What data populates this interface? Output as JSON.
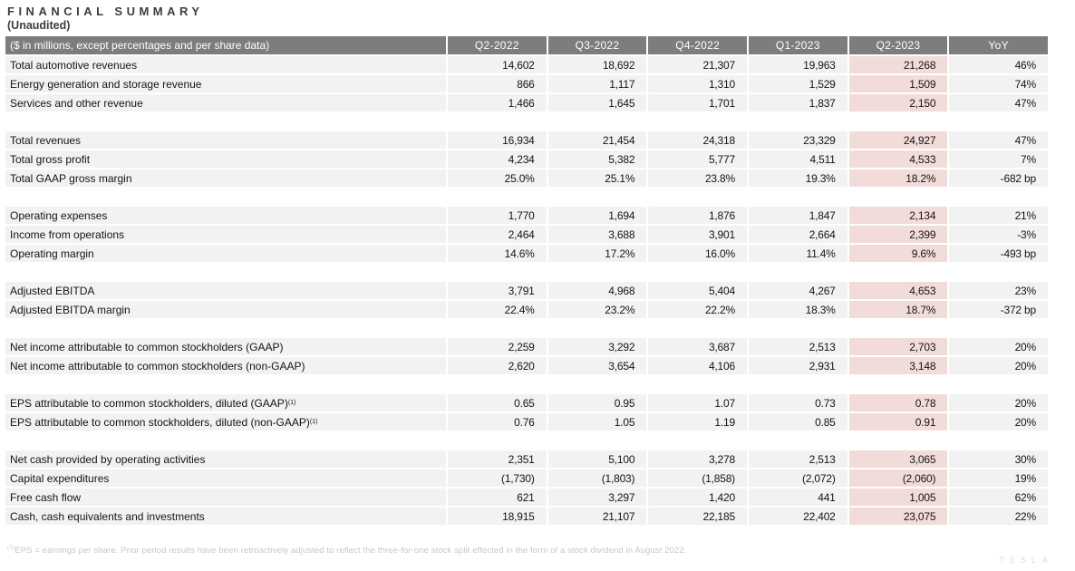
{
  "page": {
    "title": "FINANCIAL SUMMARY",
    "subtitle": "(Unaudited)",
    "footnote_sup": "(1)",
    "footnote": "EPS = earnings per share. Prior period results have been retroactively adjusted to reflect the three-for-one stock split effected in the form of a stock dividend in August 2022.",
    "logo": "TESLA"
  },
  "colors": {
    "header_bg": "#7d7d7d",
    "header_text": "#ffffff",
    "row_bg": "#f2f2f2",
    "highlight_bg": "#f2dcda",
    "title_text": "#3a3d41",
    "footnote_text": "#c7c7c7"
  },
  "chart_data": {
    "type": "table",
    "columns": [
      "($ in millions, except percentages and per share data)",
      "Q2-2022",
      "Q3-2022",
      "Q4-2022",
      "Q1-2023",
      "Q2-2023",
      "YoY"
    ],
    "highlight_column": "Q2-2023",
    "highlight_value_index": 4,
    "groups": [
      {
        "rows": [
          {
            "label": "Total automotive revenues",
            "sup": "",
            "values": [
              "14,602",
              "18,692",
              "21,307",
              "19,963",
              "21,268",
              "46%"
            ]
          },
          {
            "label": "Energy generation and storage revenue",
            "sup": "",
            "values": [
              "866",
              "1,117",
              "1,310",
              "1,529",
              "1,509",
              "74%"
            ]
          },
          {
            "label": "Services and other revenue",
            "sup": "",
            "values": [
              "1,466",
              "1,645",
              "1,701",
              "1,837",
              "2,150",
              "47%"
            ]
          }
        ]
      },
      {
        "rows": [
          {
            "label": "Total revenues",
            "sup": "",
            "values": [
              "16,934",
              "21,454",
              "24,318",
              "23,329",
              "24,927",
              "47%"
            ]
          },
          {
            "label": "Total gross profit",
            "sup": "",
            "values": [
              "4,234",
              "5,382",
              "5,777",
              "4,511",
              "4,533",
              "7%"
            ]
          },
          {
            "label": "Total GAAP gross margin",
            "sup": "",
            "values": [
              "25.0%",
              "25.1%",
              "23.8%",
              "19.3%",
              "18.2%",
              "-682 bp"
            ]
          }
        ]
      },
      {
        "rows": [
          {
            "label": "Operating expenses",
            "sup": "",
            "values": [
              "1,770",
              "1,694",
              "1,876",
              "1,847",
              "2,134",
              "21%"
            ]
          },
          {
            "label": "Income from operations",
            "sup": "",
            "values": [
              "2,464",
              "3,688",
              "3,901",
              "2,664",
              "2,399",
              "-3%"
            ]
          },
          {
            "label": "Operating margin",
            "sup": "",
            "values": [
              "14.6%",
              "17.2%",
              "16.0%",
              "11.4%",
              "9.6%",
              "-493 bp"
            ]
          }
        ]
      },
      {
        "rows": [
          {
            "label": "Adjusted EBITDA",
            "sup": "",
            "values": [
              "3,791",
              "4,968",
              "5,404",
              "4,267",
              "4,653",
              "23%"
            ]
          },
          {
            "label": "Adjusted EBITDA margin",
            "sup": "",
            "values": [
              "22.4%",
              "23.2%",
              "22.2%",
              "18.3%",
              "18.7%",
              "-372 bp"
            ]
          }
        ]
      },
      {
        "rows": [
          {
            "label": "Net income attributable to common stockholders (GAAP)",
            "sup": "",
            "values": [
              "2,259",
              "3,292",
              "3,687",
              "2,513",
              "2,703",
              "20%"
            ]
          },
          {
            "label": "Net income attributable to common stockholders (non-GAAP)",
            "sup": "",
            "values": [
              "2,620",
              "3,654",
              "4,106",
              "2,931",
              "3,148",
              "20%"
            ]
          }
        ]
      },
      {
        "rows": [
          {
            "label": "EPS attributable to common stockholders, diluted (GAAP)",
            "sup": "(1)",
            "values": [
              "0.65",
              "0.95",
              "1.07",
              "0.73",
              "0.78",
              "20%"
            ]
          },
          {
            "label": "EPS attributable to common stockholders, diluted (non-GAAP)",
            "sup": "(1)",
            "values": [
              "0.76",
              "1.05",
              "1.19",
              "0.85",
              "0.91",
              "20%"
            ]
          }
        ]
      },
      {
        "rows": [
          {
            "label": "Net cash provided by operating activities",
            "sup": "",
            "values": [
              "2,351",
              "5,100",
              "3,278",
              "2,513",
              "3,065",
              "30%"
            ]
          },
          {
            "label": "Capital expenditures",
            "sup": "",
            "values": [
              "(1,730)",
              "(1,803)",
              "(1,858)",
              "(2,072)",
              "(2,060)",
              "19%"
            ]
          },
          {
            "label": "Free cash flow",
            "sup": "",
            "values": [
              "621",
              "3,297",
              "1,420",
              "441",
              "1,005",
              "62%"
            ]
          },
          {
            "label": "Cash, cash equivalents and investments",
            "sup": "",
            "values": [
              "18,915",
              "21,107",
              "22,185",
              "22,402",
              "23,075",
              "22%"
            ]
          }
        ]
      }
    ]
  }
}
